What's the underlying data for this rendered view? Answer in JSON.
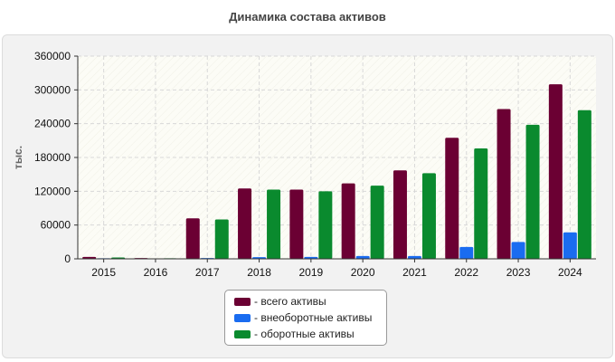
{
  "chart_data": {
    "type": "bar",
    "title": "Динамика состава активов",
    "xlabel": "",
    "ylabel": "тыс.",
    "ylim": [
      0,
      360000
    ],
    "yticks": [
      0,
      60000,
      120000,
      180000,
      240000,
      300000,
      360000
    ],
    "ytick_labels": [
      "0",
      "60000",
      "120000",
      "180000",
      "240000",
      "300000",
      "360000"
    ],
    "grid": true,
    "legend_position": "bottom-center",
    "categories": [
      "2015",
      "2016",
      "2017",
      "2018",
      "2019",
      "2020",
      "2021",
      "2022",
      "2023",
      "2024"
    ],
    "series": [
      {
        "name": "- всего активы",
        "color": "#6b0033",
        "values": [
          3500,
          1500,
          72000,
          125000,
          123000,
          134000,
          157000,
          215000,
          266000,
          310000
        ]
      },
      {
        "name": "- внеоборотные активы",
        "color": "#1a6cf0",
        "values": [
          1000,
          400,
          1500,
          3000,
          3500,
          5000,
          5000,
          21000,
          30000,
          47000
        ]
      },
      {
        "name": "- оборотные активы",
        "color": "#0a8a2e",
        "values": [
          2500,
          1100,
          70000,
          123000,
          120000,
          130000,
          152000,
          196000,
          238000,
          264000
        ]
      }
    ]
  }
}
